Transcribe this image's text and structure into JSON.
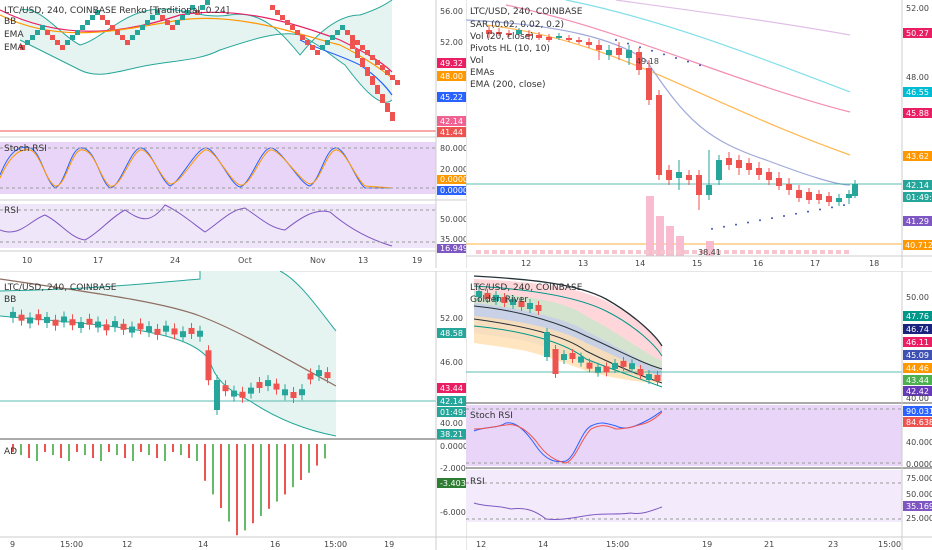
{
  "panel_tl": {
    "legend_title": "LTC/USD, 240, COINBASE Renko [Traditional, 0.24]",
    "legend_items": [
      "BB",
      "EMA",
      "EMA"
    ],
    "price_labels": [
      "56.00",
      "52.00",
      "49.32",
      "48.00",
      "45.22",
      "42.14",
      "41.44"
    ],
    "price_label_colors": [
      "#ffffff",
      "#ffffff",
      "#e91e63",
      "#ff9800",
      "#2962ff",
      "#f06292",
      "#ef5350"
    ],
    "stoch_label": "Stoch RSI",
    "stoch_axis": [
      "80.0000",
      "20.0000",
      "0.0000",
      "0.0000"
    ],
    "rsi_label": "RSI",
    "rsi_axis": [
      "50.0000",
      "35.0000",
      "16.9494"
    ],
    "time_axis": [
      "10",
      "17",
      "24",
      "Oct",
      "Nov",
      "13",
      "19"
    ]
  },
  "panel_tr": {
    "legend_title": "LTC/USD, 240, COINBASE",
    "legend_items": [
      "SAR (0.02, 0.02, 0.2)",
      "Vol (20, close)",
      "Pivots HL (10, 10)",
      "Vol",
      "EMAs",
      "EMA (200, close)"
    ],
    "price_labels": [
      "52.00",
      "50.27",
      "48.00",
      "46.55",
      "45.88",
      "43.62",
      "42.14",
      "01:49:00",
      "41.29",
      "40.712K"
    ],
    "price_label_colors": [
      "#ffffff",
      "#e91e63",
      "#ffffff",
      "#00bcd4",
      "#e91e63",
      "#ff9800",
      "#26a69a",
      "#26a69a",
      "#7e57c2",
      "#ff9800"
    ],
    "time_axis": [
      "12",
      "13",
      "14",
      "15",
      "16",
      "17",
      "18"
    ],
    "pivot_hi": "49.18",
    "pivot_lo": "38.41"
  },
  "panel_bl": {
    "legend_title": "LTC/USD, 240, COINBASE",
    "legend_items": [
      "BB"
    ],
    "price_labels": [
      "52.00",
      "48.58",
      "46.00",
      "43.44",
      "42.14",
      "01:49:00",
      "40.00",
      "38.21"
    ],
    "price_label_colors": [
      "#ffffff",
      "#26a69a",
      "#ffffff",
      "#e91e63",
      "#26a69a",
      "#26a69a",
      "#ffffff",
      "#26a69a"
    ],
    "ad_label": "AD",
    "ad_axis": [
      "0.0000",
      "-2.0000",
      "-3.4038",
      "-6.0000"
    ],
    "time_axis": [
      "9",
      "15:00",
      "12",
      "14",
      "16",
      "15:00",
      "19"
    ]
  },
  "panel_br": {
    "legend_title": "LTC/USD, 240, COINBASE",
    "legend_items": [
      "Golden River"
    ],
    "price_labels": [
      "50.00",
      "47.76",
      "46.74",
      "46.11",
      "45.09",
      "44.46",
      "43.44",
      "42.42",
      "42.14",
      "40.00"
    ],
    "price_label_colors": [
      "#ffffff",
      "#009688",
      "#1a237e",
      "#e91e63",
      "#3f51b5",
      "#ff9800",
      "#4caf50",
      "#673ab7",
      "#26a69a",
      "#ffffff"
    ],
    "stoch_label": "Stoch RSI",
    "stoch_axis": [
      "90.0313",
      "84.6383",
      "40.0000",
      "0.0000"
    ],
    "rsi_label": "RSI",
    "rsi_axis": [
      "75.0000",
      "50.0000",
      "35.1697",
      "25.0000"
    ],
    "time_axis": [
      "12",
      "14",
      "15:00",
      "19",
      "21",
      "23",
      "15:00"
    ]
  }
}
